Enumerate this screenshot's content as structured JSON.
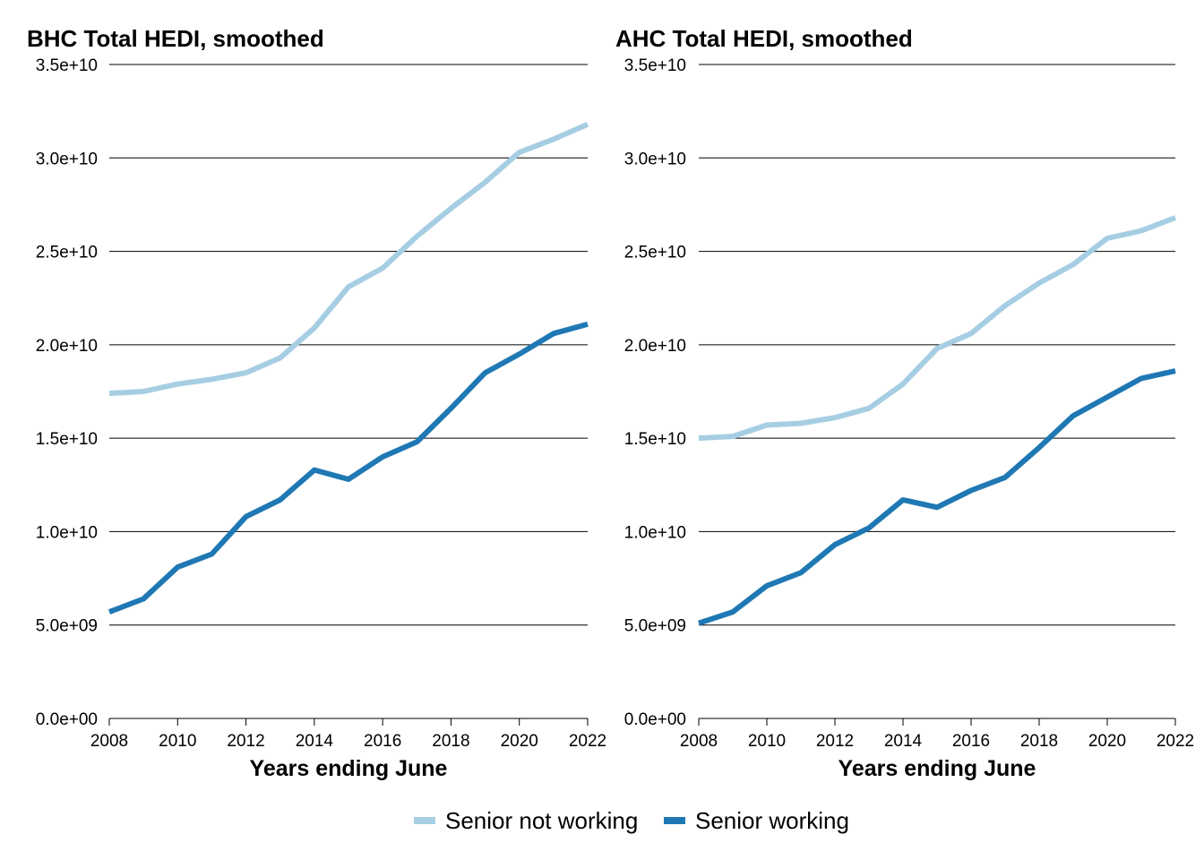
{
  "chart_data": [
    {
      "type": "line",
      "title": "BHC Total HEDI, smoothed",
      "xlabel": "Years ending June",
      "ylabel": "",
      "x": [
        2008,
        2009,
        2010,
        2011,
        2012,
        2013,
        2014,
        2015,
        2016,
        2017,
        2018,
        2019,
        2020,
        2021,
        2022
      ],
      "xlim": [
        2008,
        2022
      ],
      "ylim": [
        0,
        35000000000
      ],
      "x_ticks": [
        2008,
        2010,
        2012,
        2014,
        2016,
        2018,
        2020,
        2022
      ],
      "x_tick_labels": [
        "2008",
        "2010",
        "2012",
        "2014",
        "2016",
        "2018",
        "2020",
        "2022"
      ],
      "y_ticks": [
        0,
        5000000000,
        10000000000,
        15000000000,
        20000000000,
        25000000000,
        30000000000,
        35000000000
      ],
      "y_tick_labels": [
        "0.0e+00",
        "5.0e+09",
        "1.0e+10",
        "1.5e+10",
        "2.0e+10",
        "2.5e+10",
        "3.0e+10",
        "3.5e+10"
      ],
      "grid": "horizontal",
      "series": [
        {
          "name": "Senior not working",
          "color": "#a6cee3",
          "values": [
            17400000000,
            17500000000,
            17900000000,
            18150000000,
            18500000000,
            19300000000,
            20900000000,
            23100000000,
            24100000000,
            25800000000,
            27300000000,
            28700000000,
            30300000000,
            31000000000,
            31800000000
          ]
        },
        {
          "name": "Senior working",
          "color": "#1f78b4",
          "values": [
            5700000000,
            6400000000,
            8100000000,
            8800000000,
            10800000000,
            11700000000,
            13300000000,
            12800000000,
            14000000000,
            14800000000,
            16600000000,
            18500000000,
            19500000000,
            20600000000,
            21100000000
          ]
        }
      ]
    },
    {
      "type": "line",
      "title": "AHC Total HEDI, smoothed",
      "xlabel": "Years ending June",
      "ylabel": "",
      "x": [
        2008,
        2009,
        2010,
        2011,
        2012,
        2013,
        2014,
        2015,
        2016,
        2017,
        2018,
        2019,
        2020,
        2021,
        2022
      ],
      "xlim": [
        2008,
        2022
      ],
      "ylim": [
        0,
        35000000000
      ],
      "x_ticks": [
        2008,
        2010,
        2012,
        2014,
        2016,
        2018,
        2020,
        2022
      ],
      "x_tick_labels": [
        "2008",
        "2010",
        "2012",
        "2014",
        "2016",
        "2018",
        "2020",
        "2022"
      ],
      "y_ticks": [
        0,
        5000000000,
        10000000000,
        15000000000,
        20000000000,
        25000000000,
        30000000000,
        35000000000
      ],
      "y_tick_labels": [
        "0.0e+00",
        "5.0e+09",
        "1.0e+10",
        "1.5e+10",
        "2.0e+10",
        "2.5e+10",
        "3.0e+10",
        "3.5e+10"
      ],
      "grid": "horizontal",
      "series": [
        {
          "name": "Senior not working",
          "color": "#a6cee3",
          "values": [
            15000000000,
            15100000000,
            15700000000,
            15800000000,
            16100000000,
            16600000000,
            17900000000,
            19800000000,
            20600000000,
            22100000000,
            23300000000,
            24300000000,
            25700000000,
            26100000000,
            26800000000
          ]
        },
        {
          "name": "Senior working",
          "color": "#1f78b4",
          "values": [
            5100000000,
            5700000000,
            7100000000,
            7800000000,
            9300000000,
            10200000000,
            11700000000,
            11300000000,
            12200000000,
            12900000000,
            14500000000,
            16200000000,
            17200000000,
            18200000000,
            18600000000
          ]
        }
      ]
    }
  ],
  "legend": {
    "position": "bottom",
    "items": [
      {
        "label": "Senior not working",
        "color": "#a6cee3"
      },
      {
        "label": "Senior working",
        "color": "#1f78b4"
      }
    ]
  }
}
